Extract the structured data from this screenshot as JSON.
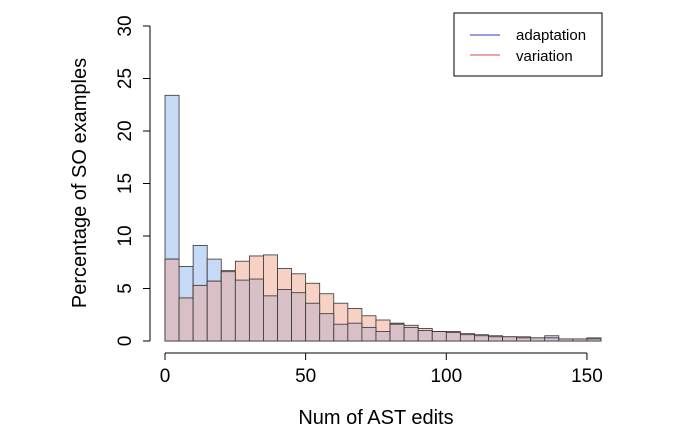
{
  "chart_data": {
    "type": "bar",
    "title": "",
    "xlabel": "Num of AST edits",
    "ylabel": "Percentage of SO examples",
    "xlim": [
      0,
      155
    ],
    "ylim": [
      0,
      30
    ],
    "x_ticks": [
      0,
      50,
      100,
      150
    ],
    "y_ticks": [
      0,
      5,
      10,
      15,
      20,
      25,
      30
    ],
    "bin_width": 5,
    "bin_starts": [
      0,
      5,
      10,
      15,
      20,
      25,
      30,
      35,
      40,
      45,
      50,
      55,
      60,
      65,
      70,
      75,
      80,
      85,
      90,
      95,
      100,
      105,
      110,
      115,
      120,
      125,
      130,
      135,
      140,
      145,
      150
    ],
    "legend_position": "top-right",
    "series": [
      {
        "name": "adaptation",
        "legend_line_color": "#3333cc",
        "fill": "#c6d9f5",
        "values": [
          23.4,
          7.1,
          9.1,
          7.8,
          6.6,
          5.8,
          5.9,
          4.3,
          4.9,
          4.6,
          3.6,
          2.6,
          1.6,
          1.7,
          1.3,
          0.9,
          1.7,
          1.3,
          1.0,
          0.9,
          0.8,
          0.6,
          0.5,
          0.4,
          0.4,
          0.3,
          0.3,
          0.5,
          0.2,
          0.2,
          0.3
        ]
      },
      {
        "name": "variation",
        "legend_line_color": "#dd4444",
        "fill": "#f7d2c4",
        "values": [
          7.8,
          4.1,
          5.3,
          5.7,
          6.7,
          7.6,
          8.1,
          8.2,
          6.9,
          6.4,
          5.5,
          4.5,
          3.6,
          3.1,
          2.4,
          2.0,
          1.6,
          1.5,
          1.2,
          0.9,
          0.9,
          0.7,
          0.6,
          0.5,
          0.4,
          0.4,
          0.3,
          0.3,
          0.2,
          0.2,
          0.2
        ]
      }
    ],
    "overlap_fill": "#d9bfc6"
  }
}
